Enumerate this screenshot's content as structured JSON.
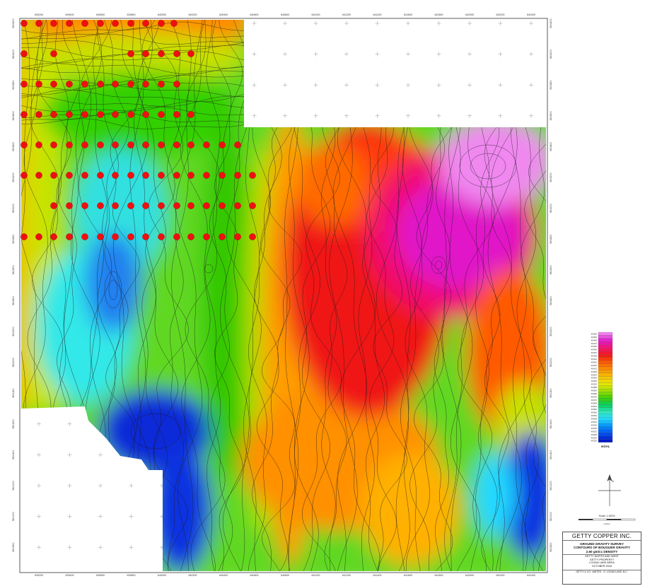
{
  "map": {
    "easting_labels": [
      "639200",
      "639400",
      "639600",
      "639800",
      "640000",
      "640200",
      "640400",
      "640600",
      "640800",
      "641000",
      "641200",
      "641400",
      "641600",
      "641800",
      "642000",
      "642200",
      "642400"
    ],
    "northing_labels": [
      "5604200",
      "5604000",
      "5603800",
      "5603600",
      "5603400",
      "5603200",
      "5603000",
      "5602800",
      "5602600",
      "5602400",
      "5602200",
      "5602000",
      "5601800",
      "5601600",
      "5601400",
      "5601200",
      "5601000",
      "5600800"
    ]
  },
  "legend": {
    "values": [
      "49456",
      "49452",
      "49448",
      "49444",
      "49440",
      "49436",
      "49432",
      "49428",
      "49424",
      "49420",
      "49416",
      "49412",
      "49408",
      "49404",
      "49400",
      "49396",
      "49392",
      "49388",
      "49384",
      "49380",
      "49376",
      "49372",
      "49368",
      "49364",
      "49360",
      "49356",
      "49352",
      "49348",
      "49344",
      "49340",
      "49336",
      "49332",
      "49328",
      "49324",
      "49320"
    ],
    "unit": "mGAL"
  },
  "scale": {
    "label": "Scale 1:5000",
    "unit_label": "metres"
  },
  "title_block": {
    "company": "GETTY COPPER INC.",
    "line1": "GROUND GRAVITY SURVEY",
    "line2": "CONTOURS OF BOUGUER GRAVITY",
    "line3": "2.60 gm/cc DENSITY",
    "sub1": "GETTY NORTH AND WEST",
    "sub2": "GETTY PROPERTY",
    "sub3": "LOGAN LAKE AREA",
    "sub4": "OCTOBER 2016",
    "footer": "GETTY & CO. LIMITED - G. LOGAN LAKE, B.C."
  },
  "colors": {
    "ramp": [
      "#0018c8",
      "#0050f0",
      "#0090ff",
      "#20d8ff",
      "#30e8c0",
      "#00d060",
      "#40d000",
      "#a0e000",
      "#e8e800",
      "#f8c000",
      "#ff9000",
      "#ff5a00",
      "#f01818",
      "#f81070",
      "#e018c8",
      "#f080f0"
    ],
    "station_dot": "#ee1010"
  }
}
